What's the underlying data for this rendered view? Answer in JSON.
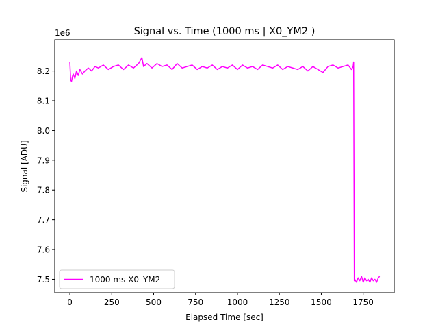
{
  "chart_data": {
    "type": "line",
    "title": "Signal vs. Time (1000 ms | X0_YM2 )",
    "xlabel": "Elapsed Time [sec]",
    "ylabel": "Signal [ADU]",
    "y_offset_label": "1e6",
    "xlim": [
      -90,
      1935
    ],
    "ylim": [
      7.455,
      8.305
    ],
    "x_ticks": [
      0,
      250,
      500,
      750,
      1000,
      1250,
      1500,
      1750
    ],
    "x_tick_labels": [
      "0",
      "250",
      "500",
      "750",
      "1000",
      "1250",
      "1500",
      "1750"
    ],
    "y_ticks": [
      7.5,
      7.6,
      7.7,
      7.8,
      7.9,
      8.0,
      8.1,
      8.2
    ],
    "y_tick_labels": [
      "7.5",
      "7.6",
      "7.7",
      "7.8",
      "7.9",
      "8.0",
      "8.1",
      "8.2"
    ],
    "grid": false,
    "legend_position": "lower-left",
    "series": [
      {
        "name": "1000 ms X0_YM2",
        "color": "#ff00ff",
        "x": [
          0,
          5,
          10,
          15,
          20,
          30,
          40,
          50,
          60,
          75,
          90,
          110,
          130,
          150,
          170,
          200,
          230,
          260,
          290,
          320,
          350,
          380,
          410,
          430,
          440,
          460,
          490,
          520,
          550,
          580,
          610,
          640,
          670,
          700,
          730,
          760,
          790,
          820,
          850,
          880,
          910,
          940,
          970,
          1000,
          1030,
          1060,
          1090,
          1120,
          1150,
          1180,
          1210,
          1240,
          1270,
          1300,
          1330,
          1360,
          1390,
          1420,
          1450,
          1480,
          1510,
          1540,
          1570,
          1600,
          1630,
          1660,
          1680,
          1690,
          1693,
          1697,
          1700,
          1710,
          1720,
          1730,
          1740,
          1750,
          1760,
          1770,
          1780,
          1790,
          1800,
          1810,
          1820,
          1830,
          1840,
          1848
        ],
        "values": [
          8.23,
          8.17,
          8.165,
          8.18,
          8.19,
          8.175,
          8.2,
          8.185,
          8.205,
          8.19,
          8.2,
          8.21,
          8.2,
          8.215,
          8.21,
          8.22,
          8.205,
          8.215,
          8.22,
          8.205,
          8.22,
          8.21,
          8.225,
          8.245,
          8.215,
          8.225,
          8.21,
          8.225,
          8.215,
          8.22,
          8.205,
          8.225,
          8.21,
          8.215,
          8.22,
          8.205,
          8.215,
          8.21,
          8.22,
          8.205,
          8.215,
          8.21,
          8.22,
          8.205,
          8.22,
          8.21,
          8.215,
          8.205,
          8.22,
          8.215,
          8.21,
          8.22,
          8.205,
          8.215,
          8.21,
          8.205,
          8.215,
          8.2,
          8.215,
          8.205,
          8.195,
          8.215,
          8.22,
          8.21,
          8.215,
          8.22,
          8.205,
          8.215,
          8.23,
          7.495,
          7.5,
          7.49,
          7.505,
          7.495,
          7.51,
          7.49,
          7.505,
          7.495,
          7.5,
          7.49,
          7.505,
          7.495,
          7.5,
          7.49,
          7.505,
          7.51
        ]
      }
    ]
  }
}
